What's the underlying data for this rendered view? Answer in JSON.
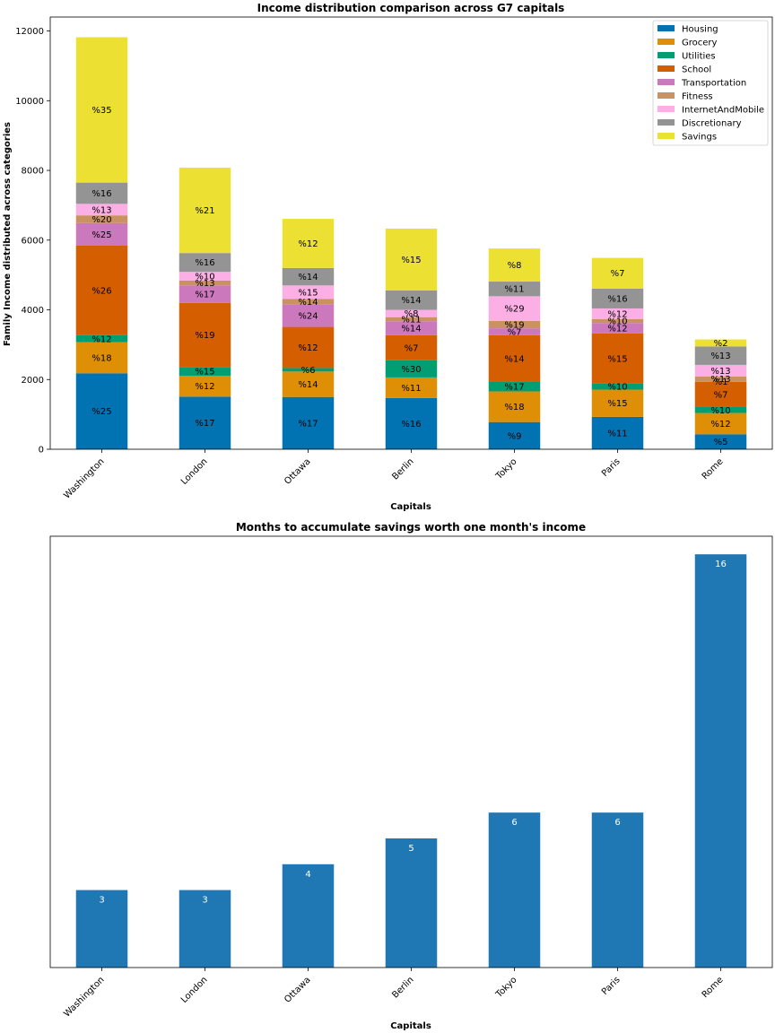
{
  "chart_data": [
    {
      "type": "bar",
      "stacked": true,
      "title": "Income distribution comparison across G7 capitals",
      "xlabel": "Capitals",
      "ylabel": "Family Income distributed across categories",
      "ylim": [
        0,
        12400
      ],
      "yticks": [
        0,
        2000,
        4000,
        6000,
        8000,
        10000,
        12000
      ],
      "categories": [
        "Washington",
        "London",
        "Ottawa",
        "Berlin",
        "Tokyo",
        "Paris",
        "Rome"
      ],
      "legend_position": "top-right",
      "series": [
        {
          "name": "Housing",
          "color": "#0173b2",
          "values": [
            2180,
            1510,
            1500,
            1470,
            780,
            930,
            430
          ],
          "labels": [
            "%25",
            "%17",
            "%17",
            "%16",
            "%9",
            "%11",
            "%5"
          ]
        },
        {
          "name": "Grocery",
          "color": "#de8f05",
          "values": [
            890,
            600,
            730,
            590,
            880,
            780,
            610
          ],
          "labels": [
            "%18",
            "%12",
            "%14",
            "%11",
            "%18",
            "%15",
            "%12"
          ]
        },
        {
          "name": "Utilities",
          "color": "#029e73",
          "values": [
            200,
            250,
            100,
            490,
            270,
            170,
            170
          ],
          "labels": [
            "%12",
            "%15",
            "%6",
            "%30",
            "%17",
            "%10",
            "%10"
          ]
        },
        {
          "name": "School",
          "color": "#d55e00",
          "values": [
            2570,
            1840,
            1180,
            720,
            1340,
            1440,
            730
          ],
          "labels": [
            "%26",
            "%19",
            "%12",
            "%7",
            "%14",
            "%15",
            "%7"
          ]
        },
        {
          "name": "Transportation",
          "color": "#cc78bc",
          "values": [
            650,
            500,
            650,
            400,
            200,
            300,
            10
          ],
          "labels": [
            "%25",
            "%17",
            "%24",
            "%14",
            "%7",
            "%12",
            "%1"
          ]
        },
        {
          "name": "Fitness",
          "color": "#ca9161",
          "values": [
            220,
            140,
            150,
            120,
            210,
            110,
            140
          ],
          "labels": [
            "%20",
            "%13",
            "%14",
            "%11",
            "%19",
            "%10",
            "%13"
          ]
        },
        {
          "name": "InternetAndMobile",
          "color": "#fbafe4",
          "values": [
            330,
            250,
            390,
            210,
            710,
            310,
            330
          ],
          "labels": [
            "%13",
            "%10",
            "%15",
            "%8",
            "%29",
            "%12",
            "%13"
          ]
        },
        {
          "name": "Discretionary",
          "color": "#949494",
          "values": [
            610,
            540,
            500,
            560,
            420,
            570,
            530
          ],
          "labels": [
            "%16",
            "%16",
            "%14",
            "%14",
            "%11",
            "%16",
            "%13"
          ]
        },
        {
          "name": "Savings",
          "color": "#ece133",
          "values": [
            4170,
            2450,
            1410,
            1770,
            950,
            880,
            200
          ],
          "labels": [
            "%35",
            "%21",
            "%12",
            "%15",
            "%8",
            "%7",
            "%2"
          ]
        }
      ]
    },
    {
      "type": "bar",
      "title": "Months to accumulate savings worth one month's income",
      "xlabel": "Capitals",
      "ylabel": "",
      "ylim": [
        0,
        16.7
      ],
      "categories": [
        "Washington",
        "London",
        "Ottawa",
        "Berlin",
        "Tokyo",
        "Paris",
        "Rome"
      ],
      "values": [
        3,
        3,
        4,
        5,
        6,
        6,
        16
      ],
      "color": "#1f77b4"
    }
  ]
}
